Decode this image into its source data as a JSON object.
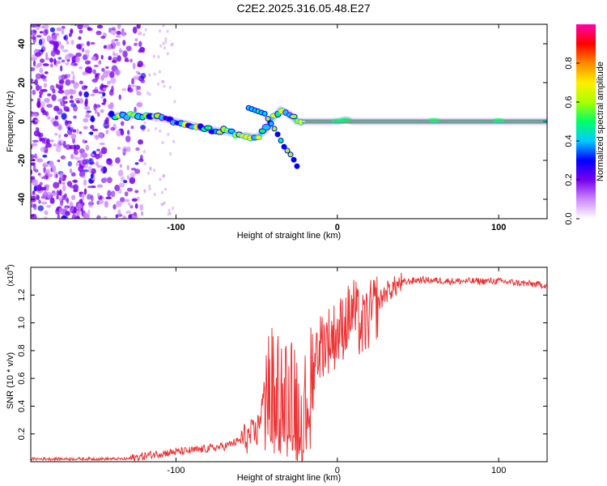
{
  "chart_data": [
    {
      "type": "heatmap",
      "title": "C2E2.2025.316.05.48.E27",
      "xlabel": "Height of straight line (km)",
      "ylabel": "Frequency (Hz)",
      "xlim": [
        -190,
        130
      ],
      "ylim": [
        -50,
        50
      ],
      "xticks": [
        -100,
        0,
        100
      ],
      "xtick_labels": [
        "-100",
        "0",
        "100"
      ],
      "yticks": [
        -40,
        -20,
        0,
        20,
        40
      ],
      "ytick_labels": [
        "-40",
        "-20",
        "0",
        "20",
        "40"
      ],
      "colorbar": {
        "label": "Normalized spectral amplitude",
        "range": [
          0,
          1
        ],
        "ticks": [
          0,
          0.2,
          0.4,
          0.6,
          0.8
        ],
        "tick_labels": [
          "0.0",
          "0.2",
          "0.4",
          "0.6",
          "0.8"
        ],
        "colors": [
          "#ffffff",
          "#cc88ff",
          "#7700ee",
          "#0000ff",
          "#00ccff",
          "#00ff66",
          "#aaff00",
          "#ffee00",
          "#ff8800",
          "#ff0000",
          "#ff00aa"
        ]
      },
      "main_trace": [
        {
          "x": -140,
          "y": 3
        },
        {
          "x": -125,
          "y": 3
        },
        {
          "x": -110,
          "y": 2
        },
        {
          "x": -100,
          "y": 0
        },
        {
          "x": -90,
          "y": -2
        },
        {
          "x": -80,
          "y": -4
        },
        {
          "x": -70,
          "y": -5
        },
        {
          "x": -60,
          "y": -7
        },
        {
          "x": -50,
          "y": -8
        },
        {
          "x": -45,
          "y": -5
        },
        {
          "x": -40,
          "y": 2
        },
        {
          "x": -35,
          "y": 6
        },
        {
          "x": -30,
          "y": 4
        },
        {
          "x": -25,
          "y": 0
        },
        {
          "x": -20,
          "y": 0
        },
        {
          "x": 0,
          "y": 0
        },
        {
          "x": 5,
          "y": 1
        },
        {
          "x": 10,
          "y": 0
        },
        {
          "x": 130,
          "y": 0
        }
      ],
      "branch_trace": [
        {
          "x": -55,
          "y": 7
        },
        {
          "x": -45,
          "y": 4
        },
        {
          "x": -38,
          "y": -5
        },
        {
          "x": -33,
          "y": -13
        },
        {
          "x": -28,
          "y": -18
        },
        {
          "x": -25,
          "y": -23
        }
      ]
    },
    {
      "type": "line",
      "xlabel": "Height of straight line (km)",
      "ylabel": "SNR (10 * v/v)",
      "y_multiplier": "(x10",
      "y_multiplier_exp": "4",
      "y_multiplier_close": ")",
      "xlim": [
        -190,
        130
      ],
      "ylim": [
        0,
        1.4
      ],
      "xticks": [
        -100,
        0,
        100
      ],
      "xtick_labels": [
        "-100",
        "0",
        "100"
      ],
      "yticks": [
        0.2,
        0.4,
        0.6,
        0.8,
        1.0,
        1.2
      ],
      "ytick_labels": [
        "0.2",
        "0.4",
        "0.6",
        "0.8",
        "1.0",
        "1.2"
      ],
      "color": "#ee3333",
      "envelope": [
        {
          "x": -190,
          "y": 0.02
        },
        {
          "x": -130,
          "y": 0.02
        },
        {
          "x": -110,
          "y": 0.06
        },
        {
          "x": -90,
          "y": 0.08
        },
        {
          "x": -70,
          "y": 0.11
        },
        {
          "x": -50,
          "y": 0.2
        },
        {
          "x": -45,
          "y": 0.5
        },
        {
          "x": -40,
          "y": 0.55
        },
        {
          "x": -30,
          "y": 0.45
        },
        {
          "x": -20,
          "y": 0.35
        },
        {
          "x": -15,
          "y": 0.75
        },
        {
          "x": -10,
          "y": 0.85
        },
        {
          "x": 0,
          "y": 0.92
        },
        {
          "x": 5,
          "y": 1.0
        },
        {
          "x": 10,
          "y": 1.1
        },
        {
          "x": 15,
          "y": 0.95
        },
        {
          "x": 20,
          "y": 1.05
        },
        {
          "x": 30,
          "y": 1.22
        },
        {
          "x": 40,
          "y": 1.29
        },
        {
          "x": 50,
          "y": 1.31
        },
        {
          "x": 70,
          "y": 1.3
        },
        {
          "x": 100,
          "y": 1.3
        },
        {
          "x": 130,
          "y": 1.27
        }
      ]
    }
  ]
}
